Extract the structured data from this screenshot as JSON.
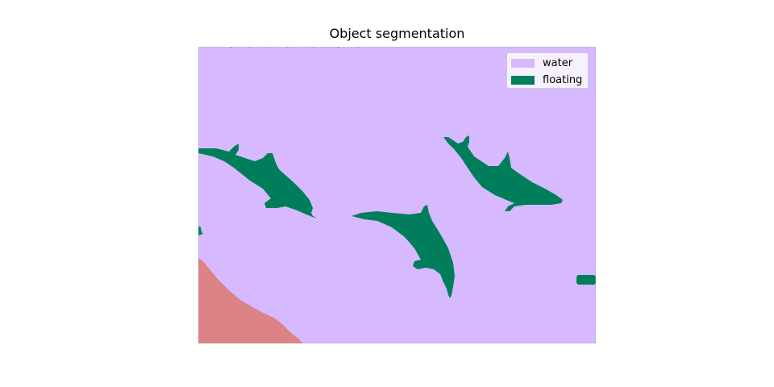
{
  "title": "Object segmentation",
  "colors": {
    "water": "#d6b9ff",
    "floating": "#007e5b",
    "shore": "#dc8485"
  },
  "legend": [
    {
      "label": "water",
      "color": "#d6b9ff"
    },
    {
      "label": "floating",
      "color": "#007e5b"
    }
  ]
}
